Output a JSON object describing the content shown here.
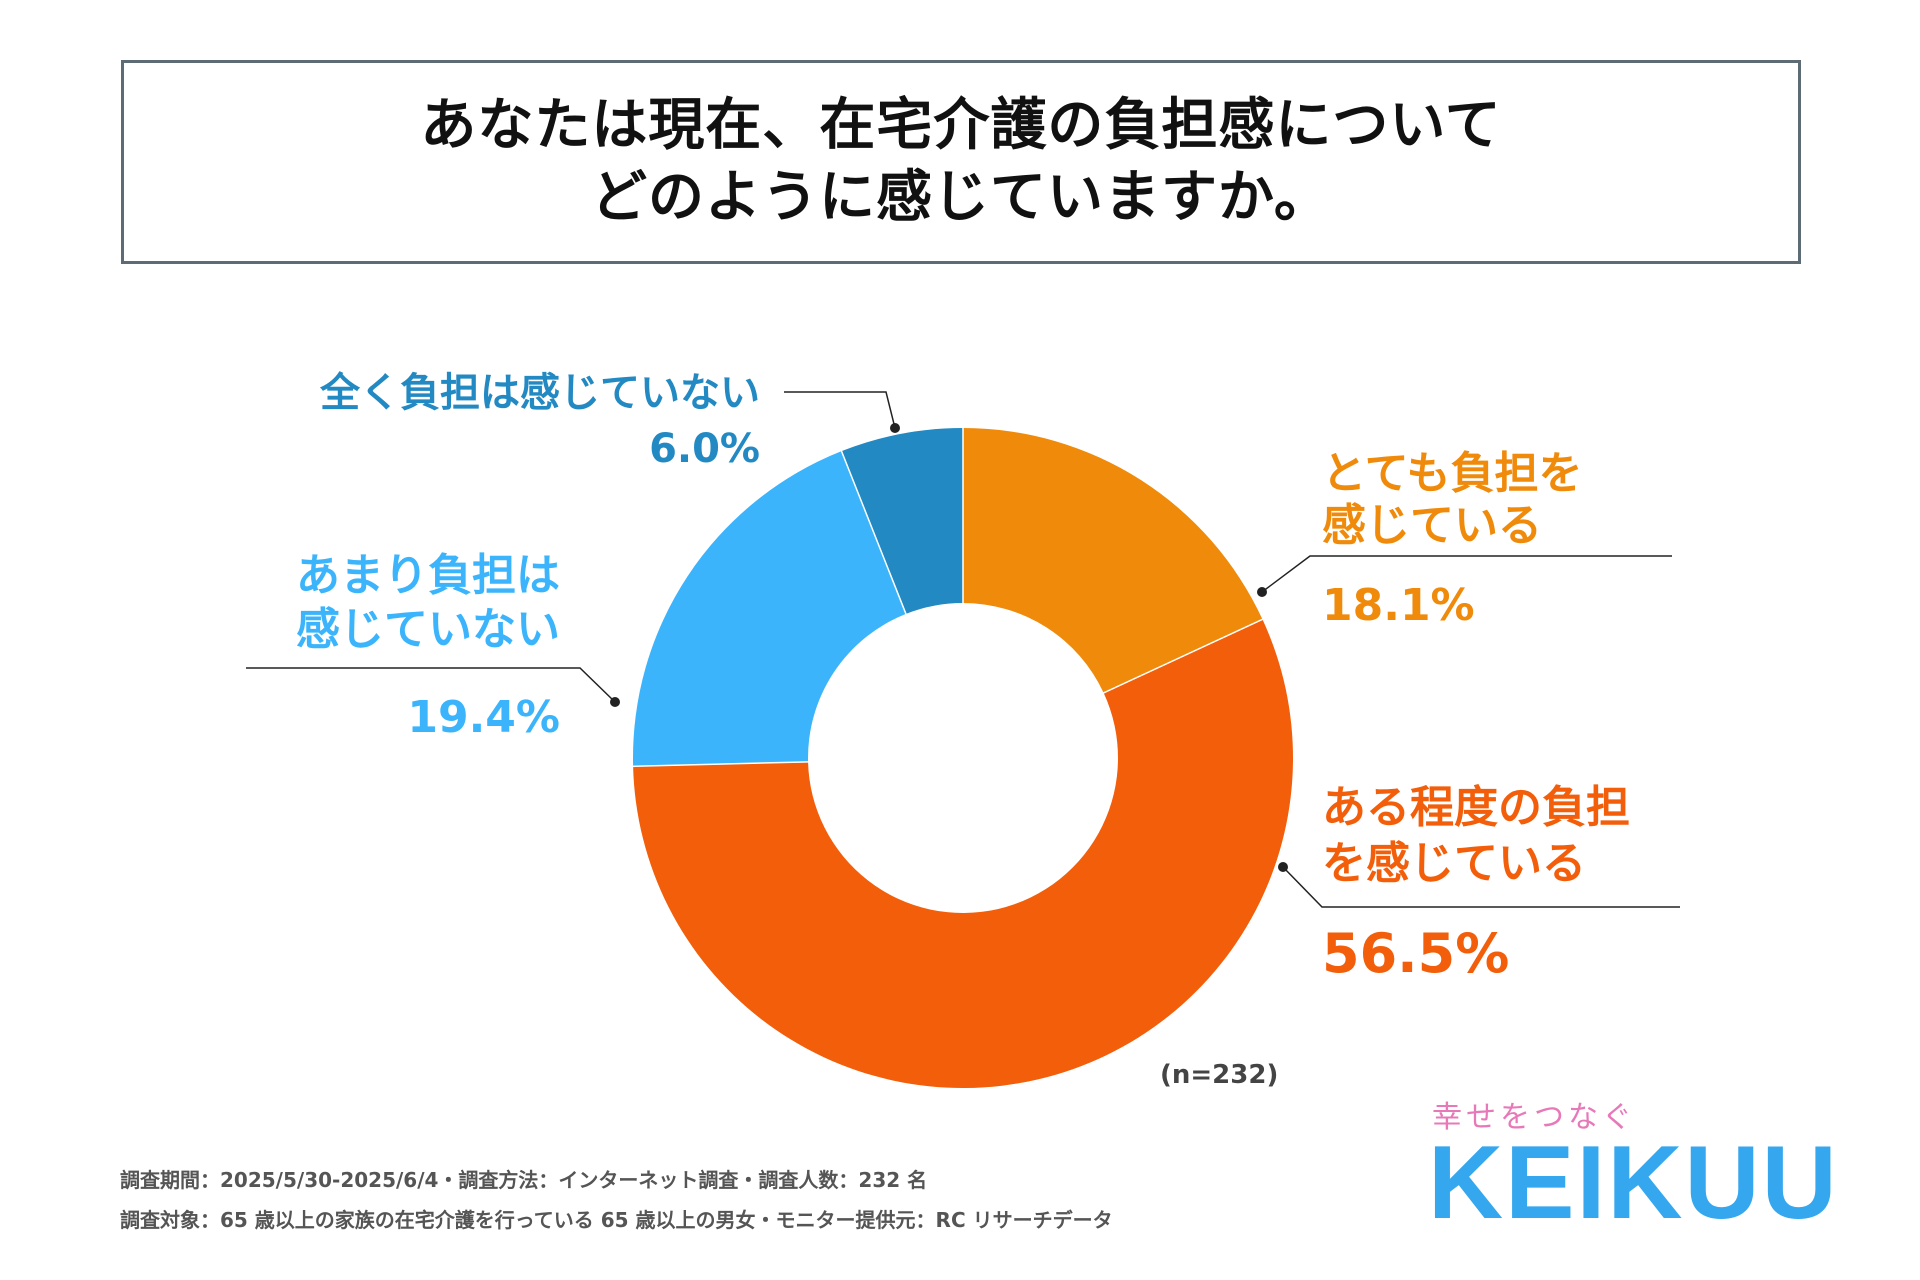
{
  "title": {
    "line1": "あなたは現在、在宅介護の負担感について",
    "line2": "どのように感じていますか。"
  },
  "chart_data": {
    "type": "pie",
    "variant": "donut",
    "title": "あなたは現在、在宅介護の負担感についてどのように感じていますか。",
    "slices": [
      {
        "label": "とても負担を感じている",
        "label_lines": [
          "とても負担を",
          "感じている"
        ],
        "value": 18.1,
        "value_text": "18.1%",
        "color": "#ef8a0b"
      },
      {
        "label": "ある程度の負担を感じている",
        "label_lines": [
          "ある程度の負担",
          "を感じている"
        ],
        "value": 56.5,
        "value_text": "56.5%",
        "color": "#f25e0a"
      },
      {
        "label": "あまり負担は感じていない",
        "label_lines": [
          "あまり負担は",
          "感じていない"
        ],
        "value": 19.4,
        "value_text": "19.4%",
        "color": "#3bb4fb"
      },
      {
        "label": "全く負担は感じていない",
        "label_lines": [
          "全く負担は感じていない"
        ],
        "value": 6.0,
        "value_text": "6.0%",
        "color": "#2389c2"
      }
    ]
  },
  "sample_size": "(n=232)",
  "notes": {
    "line1": "調査期間：2025/5/30-2025/6/4・調査方法：インターネット調査・調査人数：232 名",
    "line2": "調査対象：65 歳以上の家族の在宅介護を行っている 65 歳以上の男女・モニター提供元：RC リサーチデータ"
  },
  "brand": {
    "tagline": "幸せをつなぐ",
    "logo": "KEIKUU"
  },
  "colors": {
    "title_border": "#5d6b74",
    "leader_line": "#222222",
    "label_dark_blue": "#2389c2",
    "label_light_blue": "#3bb4fb",
    "label_orange": "#ef8a0b",
    "label_red_orange": "#f25e0a"
  }
}
